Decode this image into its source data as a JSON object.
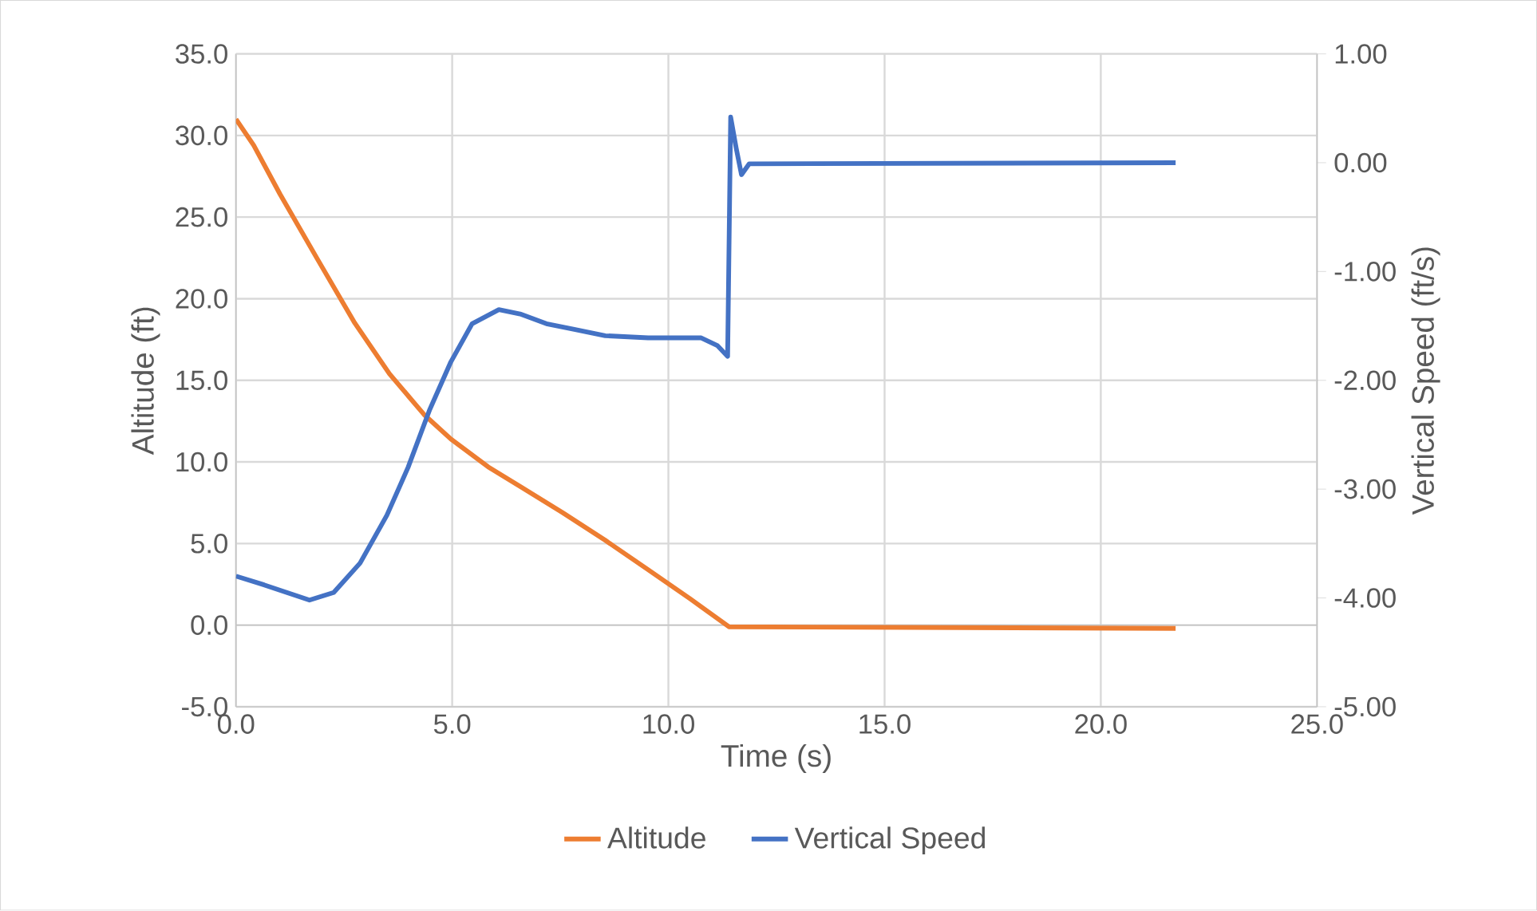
{
  "chart_data": {
    "type": "line",
    "xlabel": "Time (s)",
    "ylabel": "Altitude (ft)",
    "y2label": "Vertical Speed (ft/s)",
    "xlim": [
      0,
      25
    ],
    "ylim": [
      -5,
      35
    ],
    "y2lim": [
      -5,
      1
    ],
    "xticks": [
      {
        "value": 0,
        "label": "0.0"
      },
      {
        "value": 5,
        "label": "5.0"
      },
      {
        "value": 10,
        "label": "10.0"
      },
      {
        "value": 15,
        "label": "15.0"
      },
      {
        "value": 20,
        "label": "20.0"
      },
      {
        "value": 25,
        "label": "25.0"
      }
    ],
    "yticks": [
      {
        "value": -5,
        "label": "-5.0"
      },
      {
        "value": 0,
        "label": "0.0"
      },
      {
        "value": 5,
        "label": "5.0"
      },
      {
        "value": 10,
        "label": "10.0"
      },
      {
        "value": 15,
        "label": "15.0"
      },
      {
        "value": 20,
        "label": "20.0"
      },
      {
        "value": 25,
        "label": "25.0"
      },
      {
        "value": 30,
        "label": "30.0"
      },
      {
        "value": 35,
        "label": "35.0"
      }
    ],
    "y2ticks": [
      {
        "value": -5,
        "label": "-5.00"
      },
      {
        "value": -4,
        "label": "-4.00"
      },
      {
        "value": -3,
        "label": "-3.00"
      },
      {
        "value": -2,
        "label": "-2.00"
      },
      {
        "value": -1,
        "label": "-1.00"
      },
      {
        "value": 0,
        "label": "0.00"
      },
      {
        "value": 1,
        "label": "1.00"
      }
    ],
    "grid": true,
    "legend": "bottom",
    "series": [
      {
        "name": "Altitude",
        "color": "#ed7d31",
        "x": [
          0,
          0.41,
          1.02,
          1.89,
          2.75,
          3.55,
          4.35,
          4.97,
          5.83,
          6.57,
          7.55,
          8.54,
          9.53,
          10.51,
          11.4,
          21.73
        ],
        "values": [
          31.0,
          29.4,
          26.4,
          22.4,
          18.5,
          15.4,
          12.9,
          11.4,
          9.7,
          8.5,
          6.9,
          5.2,
          3.4,
          1.6,
          -0.1,
          -0.2
        ]
      },
      {
        "name": "Vertical Speed",
        "color": "#4472c4",
        "axis": "y2",
        "x": [
          0,
          0.65,
          1.7,
          2.26,
          2.87,
          3.49,
          3.98,
          4.48,
          4.97,
          5.46,
          6.08,
          6.57,
          7.18,
          7.8,
          8.54,
          9.53,
          10.76,
          11.13,
          11.37,
          11.44,
          11.57,
          11.69,
          11.87,
          21.73
        ],
        "values": [
          -3.8,
          -3.88,
          -4.02,
          -3.95,
          -3.68,
          -3.24,
          -2.8,
          -2.27,
          -1.83,
          -1.48,
          -1.35,
          -1.39,
          -1.48,
          -1.53,
          -1.59,
          -1.61,
          -1.61,
          -1.68,
          -1.78,
          0.42,
          0.13,
          -0.11,
          -0.01,
          0.0
        ]
      }
    ]
  }
}
